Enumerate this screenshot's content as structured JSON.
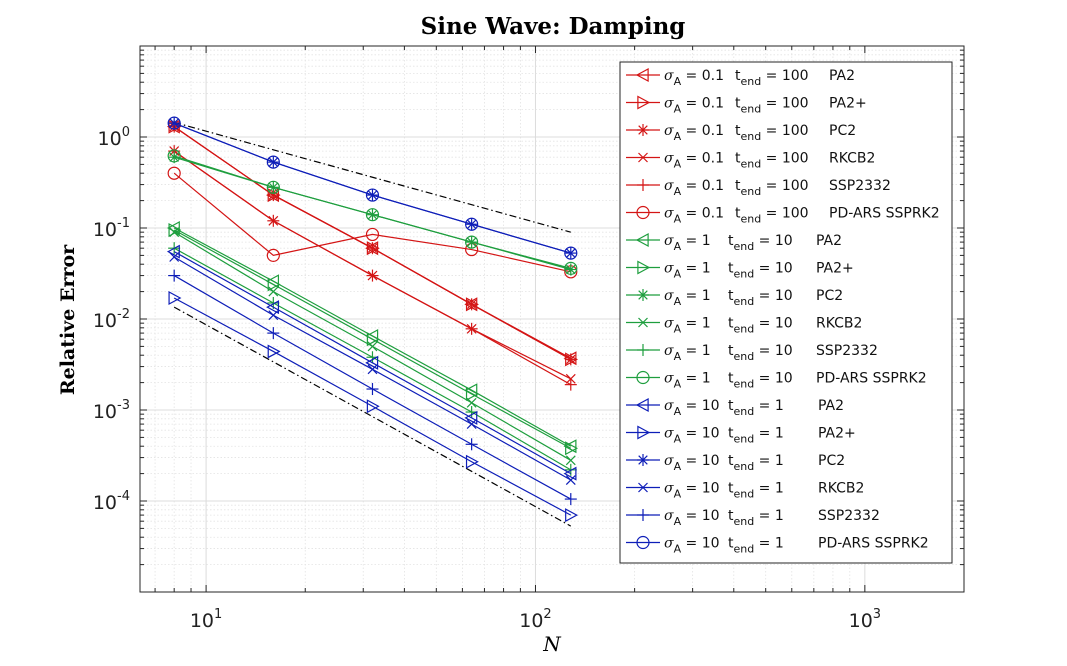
{
  "chart_data": {
    "type": "line",
    "title": "Sine Wave: Damping",
    "xlabel": "N",
    "ylabel": "Relative Error",
    "xscale": "log",
    "yscale": "log",
    "xlim": [
      6.3,
      2000
    ],
    "ylim": [
      1e-05,
      10
    ],
    "grid": true,
    "minor_grid": true,
    "legend_position": "top-right",
    "x_ticks": [
      {
        "base": "10",
        "exp": "1",
        "value": 10
      },
      {
        "base": "10",
        "exp": "2",
        "value": 100
      },
      {
        "base": "10",
        "exp": "3",
        "value": 1000
      }
    ],
    "y_ticks": [
      {
        "base": "10",
        "exp": "0",
        "value": 1
      },
      {
        "base": "10",
        "exp": "-1",
        "value": 0.1
      },
      {
        "base": "10",
        "exp": "-2",
        "value": 0.01
      },
      {
        "base": "10",
        "exp": "-3",
        "value": 0.001
      },
      {
        "base": "10",
        "exp": "-4",
        "value": 0.0001
      }
    ],
    "x": [
      8,
      16,
      32,
      64,
      128
    ],
    "reference_lines": [
      {
        "name": "first-order-reference",
        "x": [
          8,
          128
        ],
        "y": [
          1.45,
          0.09
        ]
      },
      {
        "name": "second-order-reference",
        "x": [
          8,
          128
        ],
        "y": [
          0.0135,
          5.3e-05
        ]
      }
    ],
    "series": [
      {
        "name": "σA = 0.1 tend = 100 PA2",
        "sigma": "0.1",
        "tend": "100",
        "method": "PA2",
        "color": "#d41515",
        "marker": "triangle-left",
        "values": [
          1.3,
          0.23,
          0.06,
          0.0145,
          0.0037
        ]
      },
      {
        "name": "σA = 0.1 tend = 100 PA2+",
        "sigma": "0.1",
        "tend": "100",
        "method": "PA2+",
        "color": "#d41515",
        "marker": "triangle-right",
        "values": [
          1.3,
          0.23,
          0.06,
          0.0145,
          0.0036
        ]
      },
      {
        "name": "σA = 0.1 tend = 100 PC2",
        "sigma": "0.1",
        "tend": "100",
        "method": "PC2",
        "color": "#d41515",
        "marker": "asterisk",
        "values": [
          1.3,
          0.23,
          0.06,
          0.0145,
          0.0036
        ]
      },
      {
        "name": "σA = 0.1 tend = 100 RKCB2",
        "sigma": "0.1",
        "tend": "100",
        "method": "RKCB2",
        "color": "#d41515",
        "marker": "x",
        "values": [
          0.7,
          0.12,
          0.03,
          0.0078,
          0.0022
        ]
      },
      {
        "name": "σA = 0.1 tend = 100 SSP2332",
        "sigma": "0.1",
        "tend": "100",
        "method": "SSP2332",
        "color": "#d41515",
        "marker": "plus",
        "values": [
          0.7,
          0.12,
          0.03,
          0.0078,
          0.0019
        ]
      },
      {
        "name": "σA = 0.1 tend = 100 PD-ARS SSPRK2",
        "sigma": "0.1",
        "tend": "100",
        "method": "PD-ARS SSPRK2",
        "color": "#d41515",
        "marker": "circle",
        "values": [
          0.4,
          0.05,
          0.085,
          0.058,
          0.033
        ]
      },
      {
        "name": "σA = 1 tend = 10 PA2",
        "sigma": "1",
        "tend": "10",
        "method": "PA2",
        "color": "#1e9e3e",
        "marker": "triangle-left",
        "values": [
          0.1,
          0.026,
          0.0065,
          0.00165,
          0.0004
        ]
      },
      {
        "name": "σA = 1 tend = 10 PA2+",
        "sigma": "1",
        "tend": "10",
        "method": "PA2+",
        "color": "#1e9e3e",
        "marker": "triangle-right",
        "values": [
          0.095,
          0.024,
          0.006,
          0.0015,
          0.00038
        ]
      },
      {
        "name": "σA = 1 tend = 10 PC2",
        "sigma": "1",
        "tend": "10",
        "method": "PC2",
        "color": "#1e9e3e",
        "marker": "asterisk",
        "values": [
          0.6,
          0.28,
          0.14,
          0.07,
          0.035
        ]
      },
      {
        "name": "σA = 1 tend = 10 RKCB2",
        "sigma": "1",
        "tend": "10",
        "method": "RKCB2",
        "color": "#1e9e3e",
        "marker": "x",
        "values": [
          0.09,
          0.02,
          0.005,
          0.0012,
          0.00028
        ]
      },
      {
        "name": "σA = 1 tend = 10 SSP2332",
        "sigma": "1",
        "tend": "10",
        "method": "SSP2332",
        "color": "#1e9e3e",
        "marker": "plus",
        "values": [
          0.06,
          0.015,
          0.0038,
          0.00095,
          0.00022
        ]
      },
      {
        "name": "σA = 1 tend = 10 PD-ARS SSPRK2",
        "sigma": "1",
        "tend": "10",
        "method": "PD-ARS SSPRK2",
        "color": "#1e9e3e",
        "marker": "circle",
        "values": [
          0.62,
          0.28,
          0.14,
          0.07,
          0.036
        ]
      },
      {
        "name": "σA = 10 tend = 1 PA2",
        "sigma": "10",
        "tend": "1",
        "method": "PA2",
        "color": "#0e1eb8",
        "marker": "triangle-left",
        "values": [
          0.055,
          0.0135,
          0.0033,
          0.00082,
          0.0002
        ]
      },
      {
        "name": "σA = 10 tend = 1 PA2+",
        "sigma": "10",
        "tend": "1",
        "method": "PA2+",
        "color": "#0e1eb8",
        "marker": "triangle-right",
        "values": [
          0.017,
          0.0044,
          0.0011,
          0.00027,
          7e-05
        ]
      },
      {
        "name": "σA = 10 tend = 1 PC2",
        "sigma": "10",
        "tend": "1",
        "method": "PC2",
        "color": "#0e1eb8",
        "marker": "asterisk",
        "values": [
          1.42,
          0.53,
          0.23,
          0.11,
          0.053
        ]
      },
      {
        "name": "σA = 10 tend = 1 RKCB2",
        "sigma": "10",
        "tend": "1",
        "method": "RKCB2",
        "color": "#0e1eb8",
        "marker": "x",
        "values": [
          0.048,
          0.011,
          0.0028,
          0.0007,
          0.00017
        ]
      },
      {
        "name": "σA = 10 tend = 1 SSP2332",
        "sigma": "10",
        "tend": "1",
        "method": "SSP2332",
        "color": "#0e1eb8",
        "marker": "plus",
        "values": [
          0.03,
          0.007,
          0.0017,
          0.00042,
          0.000105
        ]
      },
      {
        "name": "σA = 10 tend = 1 PD-ARS SSPRK2",
        "sigma": "10",
        "tend": "1",
        "method": "PD-ARS SSPRK2",
        "color": "#0e1eb8",
        "marker": "circle",
        "values": [
          1.42,
          0.53,
          0.23,
          0.11,
          0.053
        ]
      }
    ]
  }
}
